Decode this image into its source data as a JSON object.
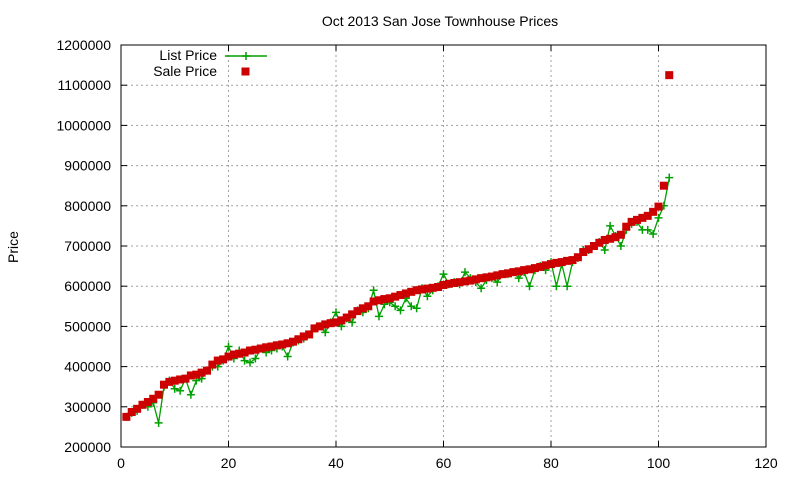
{
  "chart_data": {
    "type": "line",
    "title": "Oct 2013 San Jose Townhouse Prices",
    "xlabel": "",
    "ylabel": "Price",
    "xlim": [
      0,
      120
    ],
    "ylim": [
      200000,
      1200000
    ],
    "x_ticks": [
      0,
      20,
      40,
      60,
      80,
      100,
      120
    ],
    "y_ticks": [
      200000,
      300000,
      400000,
      500000,
      600000,
      700000,
      800000,
      900000,
      1000000,
      1100000,
      1200000
    ],
    "grid": true,
    "legend_position": "top-left",
    "series": [
      {
        "name": "List Price",
        "style": "line+plus",
        "color": "#00a000",
        "x": [
          1,
          2,
          3,
          4,
          5,
          6,
          7,
          8,
          9,
          10,
          11,
          12,
          13,
          14,
          15,
          16,
          17,
          18,
          19,
          20,
          21,
          22,
          23,
          24,
          25,
          26,
          27,
          28,
          29,
          30,
          31,
          32,
          33,
          34,
          35,
          36,
          37,
          38,
          39,
          40,
          41,
          42,
          43,
          44,
          45,
          46,
          47,
          48,
          49,
          50,
          51,
          52,
          53,
          54,
          55,
          56,
          57,
          58,
          59,
          60,
          61,
          62,
          63,
          64,
          65,
          66,
          67,
          68,
          69,
          70,
          71,
          72,
          73,
          74,
          75,
          76,
          77,
          78,
          79,
          80,
          81,
          82,
          83,
          84,
          85,
          86,
          87,
          88,
          89,
          90,
          91,
          92,
          93,
          94,
          95,
          96,
          97,
          98,
          99,
          100,
          101,
          102
        ],
        "values": [
          275000,
          285000,
          290000,
          305000,
          300000,
          310000,
          260000,
          350000,
          365000,
          345000,
          340000,
          370000,
          330000,
          365000,
          370000,
          390000,
          400000,
          400000,
          415000,
          450000,
          420000,
          440000,
          415000,
          410000,
          420000,
          445000,
          435000,
          440000,
          445000,
          450000,
          425000,
          460000,
          465000,
          470000,
          480000,
          495000,
          500000,
          485000,
          510000,
          535000,
          500000,
          520000,
          510000,
          540000,
          535000,
          545000,
          590000,
          525000,
          555000,
          560000,
          550000,
          540000,
          570000,
          550000,
          545000,
          595000,
          575000,
          590000,
          600000,
          630000,
          605000,
          610000,
          605000,
          635000,
          620000,
          610000,
          595000,
          615000,
          620000,
          610000,
          630000,
          630000,
          635000,
          620000,
          635000,
          600000,
          640000,
          650000,
          640000,
          660000,
          600000,
          655000,
          600000,
          660000,
          670000,
          690000,
          690000,
          700000,
          710000,
          690000,
          750000,
          725000,
          700000,
          740000,
          755000,
          760000,
          740000,
          740000,
          730000,
          770000,
          800000,
          870000
        ]
      },
      {
        "name": "Sale Price",
        "style": "points",
        "color": "#cc0000",
        "x": [
          1,
          2,
          3,
          4,
          5,
          6,
          7,
          8,
          9,
          10,
          11,
          12,
          13,
          14,
          15,
          16,
          17,
          18,
          19,
          20,
          21,
          22,
          23,
          24,
          25,
          26,
          27,
          28,
          29,
          30,
          31,
          32,
          33,
          34,
          35,
          36,
          37,
          38,
          39,
          40,
          41,
          42,
          43,
          44,
          45,
          46,
          47,
          48,
          49,
          50,
          51,
          52,
          53,
          54,
          55,
          56,
          57,
          58,
          59,
          60,
          61,
          62,
          63,
          64,
          65,
          66,
          67,
          68,
          69,
          70,
          71,
          72,
          73,
          74,
          75,
          76,
          77,
          78,
          79,
          80,
          81,
          82,
          83,
          84,
          85,
          86,
          87,
          88,
          89,
          90,
          91,
          92,
          93,
          94,
          95,
          96,
          97,
          98,
          99,
          100,
          101,
          102
        ],
        "values": [
          275000,
          287000,
          295000,
          305000,
          312000,
          320000,
          330000,
          355000,
          362000,
          365000,
          368000,
          370000,
          378000,
          380000,
          385000,
          390000,
          405000,
          415000,
          418000,
          425000,
          430000,
          432000,
          435000,
          440000,
          442000,
          445000,
          448000,
          450000,
          453000,
          455000,
          458000,
          462000,
          468000,
          475000,
          480000,
          495000,
          500000,
          505000,
          508000,
          510000,
          515000,
          522000,
          530000,
          538000,
          545000,
          550000,
          562000,
          565000,
          568000,
          570000,
          574000,
          578000,
          582000,
          586000,
          590000,
          592000,
          594000,
          596000,
          598000,
          603000,
          606000,
          608000,
          610000,
          612000,
          614000,
          617000,
          620000,
          622000,
          624000,
          627000,
          630000,
          632000,
          635000,
          637000,
          640000,
          642000,
          645000,
          648000,
          652000,
          655000,
          658000,
          660000,
          663000,
          665000,
          672000,
          685000,
          692000,
          700000,
          708000,
          715000,
          718000,
          722000,
          728000,
          748000,
          760000,
          765000,
          770000,
          775000,
          785000,
          798000,
          850000,
          1125000
        ]
      }
    ]
  }
}
